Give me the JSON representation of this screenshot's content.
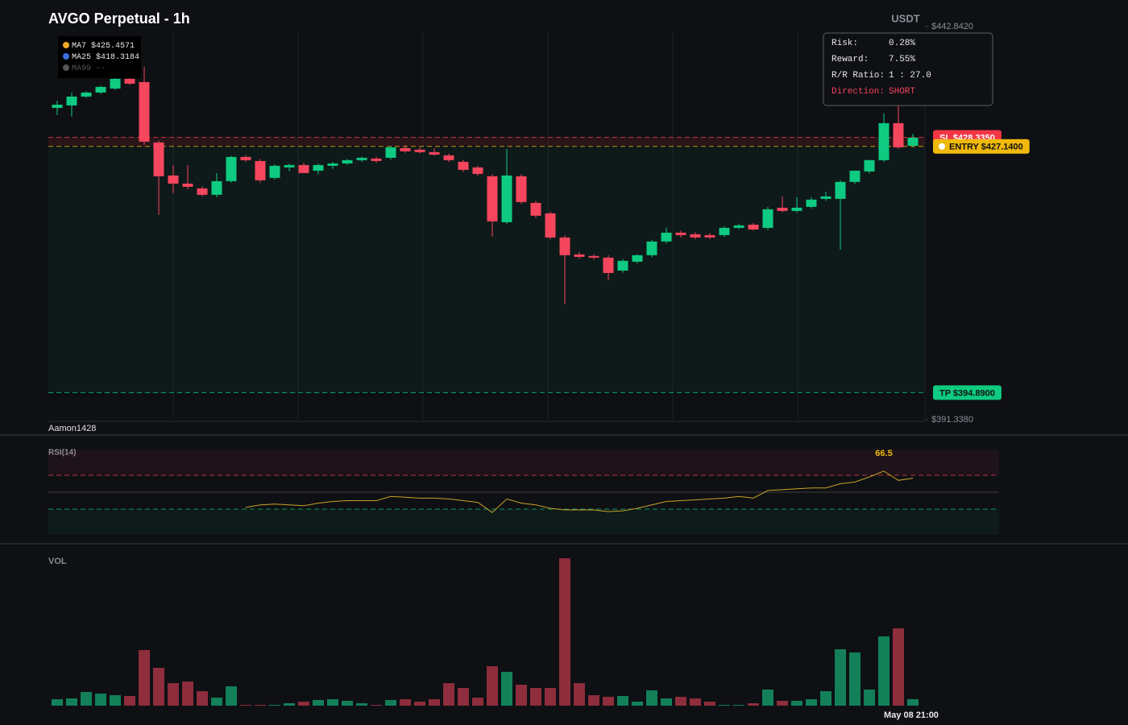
{
  "chart_data": [
    {
      "type": "candlestick",
      "title": "AVGO Perpetual - 1h",
      "currency": "USDT",
      "watermark": "Aamon1428",
      "ylim": [
        391.338,
        442.842
      ],
      "yticks": [
        {
          "value": 442.842,
          "label": "$442.8420"
        },
        {
          "value": 391.338,
          "label": "$391.3380"
        }
      ],
      "up_color": "#0ecb81",
      "down_color": "#f6465d",
      "ma_legend": [
        {
          "name": "MA7",
          "label": "$425.4571",
          "color": "#f0a92a"
        },
        {
          "name": "MA25",
          "label": "$418.3184",
          "color": "#3b6fe0"
        },
        {
          "name": "MA99",
          "label": "--",
          "color": "#555555"
        }
      ],
      "levels": [
        {
          "name": "SL",
          "value": 428.335,
          "label": "SL $428.3350",
          "color": "#f23645"
        },
        {
          "name": "ENTRY",
          "value": 427.14,
          "label": "ENTRY $427.1400",
          "color": "#f0b90b"
        },
        {
          "name": "TP",
          "value": 394.89,
          "label": "TP $394.8900",
          "color": "#0ecb81"
        }
      ],
      "risk_panel": [
        {
          "label": "Risk:",
          "value": "0.28%"
        },
        {
          "label": "Reward:",
          "value": "7.55%"
        },
        {
          "label": "R/R Ratio:",
          "value": "1 : 27.0"
        },
        {
          "label": "Direction:",
          "value": "SHORT"
        }
      ],
      "open": [
        432.19,
        432.51,
        433.67,
        434.2,
        434.72,
        435.99,
        435.57,
        427.66,
        423.33,
        422.27,
        421.64,
        420.8,
        422.59,
        425.76,
        425.23,
        423.02,
        424.39,
        424.7,
        423.96,
        424.6,
        424.91,
        425.34,
        425.55,
        425.65,
        426.92,
        426.71,
        426.39,
        425.97,
        425.12,
        424.39,
        423.23,
        417.21,
        423.23,
        419.74,
        418.37,
        415.21,
        412.99,
        412.78,
        412.57,
        410.87,
        412.04,
        412.89,
        414.68,
        415.84,
        415.63,
        415.52,
        415.52,
        416.47,
        416.89,
        416.47,
        419.11,
        418.69,
        419.22,
        420.27,
        420.27,
        422.49,
        423.86,
        425.34,
        430.19,
        427.23
      ],
      "high": [
        433.14,
        434.2,
        434.4,
        435.1,
        436.2,
        436.2,
        437.57,
        427.9,
        424.7,
        424.7,
        421.9,
        423.65,
        425.9,
        426.0,
        425.5,
        424.8,
        424.9,
        425.0,
        424.9,
        425.1,
        425.5,
        425.8,
        425.8,
        427.2,
        427.3,
        427.0,
        426.9,
        426.2,
        425.4,
        424.6,
        423.5,
        426.81,
        423.5,
        420.0,
        418.6,
        415.5,
        413.3,
        413.0,
        412.9,
        412.4,
        413.0,
        414.9,
        416.5,
        416.1,
        415.9,
        415.8,
        416.7,
        417.0,
        417.1,
        419.2,
        420.6,
        420.5,
        420.5,
        421.2,
        422.7,
        424.0,
        425.4,
        431.5,
        433.0,
        428.8
      ],
      "low": [
        431.24,
        431.03,
        433.5,
        434.0,
        434.5,
        435.2,
        427.34,
        418.16,
        421.01,
        421.54,
        420.6,
        420.48,
        422.4,
        425.1,
        422.4,
        422.8,
        423.9,
        423.8,
        423.5,
        424.2,
        424.7,
        425.1,
        425.0,
        425.4,
        426.3,
        426.2,
        425.9,
        425.1,
        423.8,
        423.3,
        415.31,
        417.0,
        419.6,
        417.8,
        415.0,
        406.45,
        412.4,
        412.3,
        409.61,
        410.6,
        411.8,
        412.6,
        414.4,
        415.2,
        415.0,
        415.0,
        415.3,
        416.3,
        416.1,
        416.2,
        418.5,
        418.5,
        419.0,
        420.0,
        413.62,
        422.2,
        423.6,
        425.1,
        426.8,
        427.0
      ],
      "close": [
        432.61,
        433.67,
        434.2,
        434.94,
        435.99,
        435.36,
        427.76,
        423.23,
        422.27,
        421.85,
        420.8,
        422.59,
        425.76,
        425.34,
        422.7,
        424.6,
        424.7,
        423.65,
        424.7,
        424.91,
        425.34,
        425.65,
        425.23,
        427.02,
        426.5,
        426.39,
        426.07,
        425.34,
        424.07,
        423.54,
        417.32,
        423.33,
        419.85,
        418.06,
        415.21,
        412.89,
        412.67,
        412.57,
        410.56,
        412.15,
        412.89,
        414.68,
        415.84,
        415.52,
        415.21,
        415.21,
        416.47,
        416.79,
        416.26,
        418.9,
        418.69,
        419.11,
        420.17,
        420.59,
        422.49,
        423.96,
        425.34,
        430.19,
        427.02,
        428.29
      ]
    },
    {
      "type": "line",
      "title": "RSI(14)",
      "ylim": [
        0,
        100
      ],
      "levels": [
        70,
        50,
        30
      ],
      "color": "#c9a227",
      "values": [
        null,
        null,
        null,
        null,
        null,
        null,
        null,
        null,
        null,
        null,
        null,
        null,
        null,
        32,
        35,
        36,
        35,
        34,
        37,
        39,
        40,
        40,
        40,
        45,
        44,
        43,
        43,
        42,
        40,
        38,
        26,
        42,
        37,
        35,
        31,
        29,
        29,
        29,
        27,
        28,
        31,
        35,
        39,
        40,
        41,
        42,
        43,
        45,
        43,
        52,
        53,
        54,
        55,
        55,
        60,
        62,
        68,
        75,
        64,
        66.5
      ]
    },
    {
      "type": "bar",
      "title": "VOL",
      "ylim": [
        0,
        190
      ],
      "categories": [
        null,
        null,
        null,
        null,
        null,
        null,
        null,
        null,
        null,
        null,
        null,
        null,
        null,
        null,
        null,
        null,
        null,
        null,
        null,
        null,
        null,
        null,
        null,
        null,
        null,
        null,
        null,
        null,
        null,
        null,
        null,
        null,
        null,
        null,
        null,
        null,
        null,
        null,
        null,
        null,
        null,
        null,
        null,
        null,
        null,
        null,
        null,
        null,
        null,
        null,
        null,
        null,
        null,
        null,
        null,
        null,
        null,
        null,
        null,
        "May 08 21:00"
      ],
      "values": [
        8,
        9,
        17,
        15,
        13,
        12,
        69,
        47,
        28,
        30,
        18,
        10,
        24,
        1,
        1,
        1,
        3,
        5,
        7,
        8,
        6,
        3,
        1,
        7,
        8,
        5,
        8,
        28,
        22,
        10,
        49,
        42,
        26,
        22,
        22,
        183,
        28,
        13,
        11,
        12,
        5,
        19,
        9,
        11,
        9,
        5,
        1,
        1,
        3,
        20,
        6,
        6,
        8,
        18,
        70,
        66,
        20,
        86,
        96,
        8
      ]
    }
  ]
}
